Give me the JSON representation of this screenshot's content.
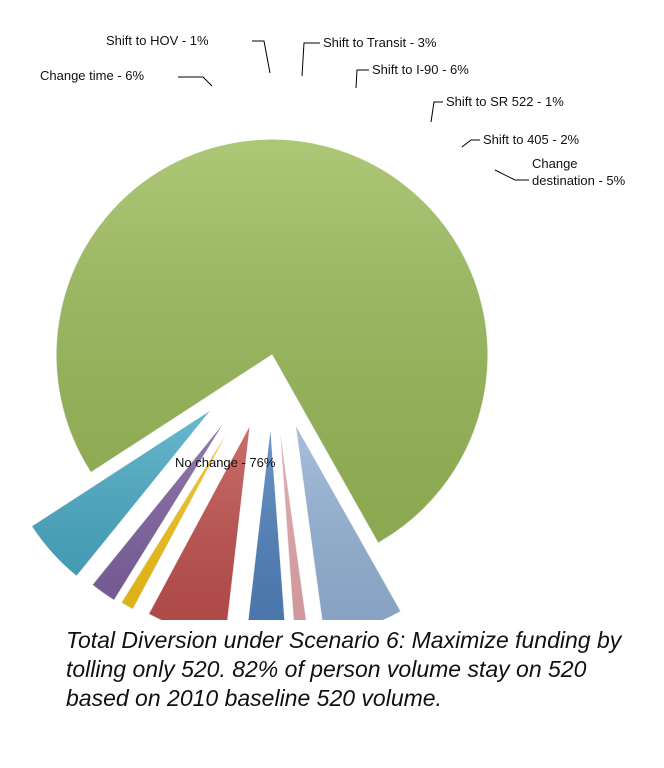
{
  "chart_data": {
    "type": "pie",
    "title": "",
    "caption": "Total Diversion under Scenario 6: Maximize funding by tolling only 520. 82% of person volume stay on 520 based on 2010 baseline 520 volume.",
    "unit": "%",
    "slices": [
      {
        "label": "No change - 76%",
        "name": "No change",
        "value": 76,
        "color": "#9BBB59",
        "exploded": false
      },
      {
        "label": "Change time - 6%",
        "name": "Change time",
        "value": 6,
        "color": "#95B3D7",
        "exploded": true
      },
      {
        "label": "Shift to HOV - 1%",
        "name": "Shift to HOV",
        "value": 1,
        "color": "#E6A9AC",
        "exploded": true
      },
      {
        "label": "Shift to Transit - 3%",
        "name": "Shift to Transit",
        "value": 3,
        "color": "#4F81BD",
        "exploded": true
      },
      {
        "label": "Shift to I-90 - 6%",
        "name": "Shift to I-90",
        "value": 6,
        "color": "#C0504D",
        "exploded": true
      },
      {
        "label": "Shift to SR 522 - 1%",
        "name": "Shift to SR 522",
        "value": 1,
        "color": "#F5C518",
        "exploded": true
      },
      {
        "label": "Shift to 405 - 2%",
        "name": "Shift to 405",
        "value": 2,
        "color": "#8064A2",
        "exploded": true
      },
      {
        "label": [
          "Change",
          "destination - 5%"
        ],
        "name": "Change destination",
        "value": 5,
        "color": "#4BACC6",
        "exploded": true
      }
    ]
  }
}
